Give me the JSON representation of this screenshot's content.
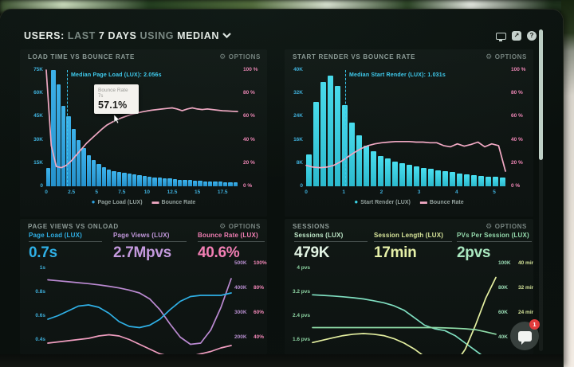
{
  "ui": {
    "options": "OPTIONS"
  },
  "header": {
    "users": "USERS:",
    "last": "LAST",
    "days": "7 DAYS",
    "using": "USING",
    "median": "MEDIAN"
  },
  "icons": {
    "share": "↗",
    "help": "?",
    "gear": "⚙"
  },
  "chat": {
    "badge": "1"
  },
  "panels": {
    "load_time": {
      "title": "LOAD TIME VS BOUNCE RATE"
    },
    "start_render": {
      "title": "START RENDER VS BOUNCE RATE"
    },
    "page_views": {
      "title": "PAGE VIEWS VS ONLOAD",
      "metrics": [
        {
          "label": "Page Load (LUX)",
          "value": "0.7s"
        },
        {
          "label": "Page Views (LUX)",
          "value": "2.7Mpvs"
        },
        {
          "label": "Bounce Rate (LUX)",
          "value": "40.6%"
        }
      ]
    },
    "sessions": {
      "title": "SESSIONS",
      "metrics": [
        {
          "label": "Sessions (LUX)",
          "value": "479K"
        },
        {
          "label": "Session Length (LUX)",
          "value": "17min"
        },
        {
          "label": "PVs Per Session (LUX)",
          "value": "2pvs"
        }
      ]
    }
  },
  "chart_data": [
    {
      "type": "bar",
      "title": "LOAD TIME VS BOUNCE RATE",
      "bars_series": "Page Load (LUX) user count",
      "bar_max": 75000,
      "bars": [
        12,
        75,
        66,
        52,
        45,
        37,
        30,
        24.5,
        20,
        17,
        14.5,
        12.5,
        11,
        10,
        9.2,
        8.6,
        8,
        7.5,
        7,
        6.6,
        6.2,
        5.8,
        5.5,
        5.2,
        4.9,
        4.6,
        4.3,
        4.1,
        3.9,
        3.7,
        3.5,
        3.3,
        3.1,
        3,
        2.9,
        2.8,
        2.7,
        2.6
      ],
      "bars_unit": "K users per 0.5s bin, x = seconds 0-19",
      "line_series": "Bounce Rate %",
      "line": [
        100,
        35,
        17,
        16,
        18,
        22,
        27,
        32,
        37,
        41,
        45,
        49,
        52.5,
        55,
        57.1,
        59,
        60.5,
        62,
        63,
        64,
        64.8,
        65.5,
        66,
        66.5,
        67,
        67.5,
        66.5,
        65,
        66.5,
        67.5,
        66.5,
        66,
        66.5,
        66,
        65.5,
        65,
        64.8,
        64.5,
        64.3
      ],
      "y_left": [
        "75K",
        "60K",
        "45K",
        "30K",
        "15K",
        "0"
      ],
      "y_right": [
        "100 %",
        "80 %",
        "60 %",
        "40 %",
        "20 %",
        "0 %"
      ],
      "x_ticks": [
        "0",
        "2.5",
        "5",
        "7.5",
        "10",
        "12.5",
        "15",
        "17.5"
      ],
      "median": {
        "label": "Median Page Load (LUX): 2.056s",
        "value_s": 2.056
      },
      "tooltip": {
        "series": "Bounce Rate",
        "x": "7s",
        "value": "57.1%"
      },
      "legend": [
        "Page Load (LUX)",
        "Bounce Rate"
      ]
    },
    {
      "type": "bar",
      "title": "START RENDER VS BOUNCE RATE",
      "bars_series": "Start Render (LUX) user count",
      "bar_max": 40000,
      "bars": [
        11,
        29,
        36,
        38,
        34.5,
        28,
        22,
        17.5,
        14,
        12,
        10.5,
        9.5,
        8.6,
        7.9,
        7.3,
        6.8,
        6.3,
        5.9,
        5.5,
        5.1,
        4.8,
        4.5,
        4.2,
        3.9,
        3.6,
        3.4,
        3.2,
        3
      ],
      "bars_unit": "K users per bin, x = seconds 0-5.3",
      "line_series": "Bounce Rate %",
      "line": [
        18,
        16.5,
        16,
        16.5,
        18,
        21,
        25,
        29,
        32.5,
        35,
        36.5,
        37.5,
        38,
        38.5,
        38.5,
        38.5,
        38,
        38,
        37.5,
        37.5,
        35,
        34,
        36.5,
        34.5,
        36,
        38,
        34,
        36.5,
        35,
        13
      ],
      "y_left": [
        "40K",
        "32K",
        "24K",
        "16K",
        "8K",
        "0"
      ],
      "y_right": [
        "100 %",
        "80 %",
        "60 %",
        "40 %",
        "20 %",
        "0 %"
      ],
      "x_ticks": [
        "0",
        "1",
        "2",
        "3",
        "4",
        "5"
      ],
      "median": {
        "label": "Median Start Render (LUX): 1.031s",
        "value_s": 1.031
      },
      "legend": [
        "Start Render (LUX)",
        "Bounce Rate"
      ]
    },
    {
      "type": "line",
      "title": "PAGE VIEWS VS ONLOAD",
      "y_left": [
        "1s",
        "0.8s",
        "0.6s",
        "0.4s"
      ],
      "y_right_k": [
        "500K",
        "400K",
        "300K",
        "200K"
      ],
      "y_right_pct": [
        "100%",
        "80%",
        "60%",
        "40%"
      ],
      "series": [
        {
          "name": "Page Load (LUX)",
          "unit": "s",
          "values": [
            0.6,
            0.63,
            0.67,
            0.71,
            0.72,
            0.7,
            0.65,
            0.58,
            0.54,
            0.53,
            0.55,
            0.6,
            0.68,
            0.75,
            0.79,
            0.8,
            0.8,
            0.8,
            0.82
          ]
        },
        {
          "name": "Page Views (LUX)",
          "unit": "K",
          "values": [
            465,
            461,
            457,
            453,
            449,
            444,
            438,
            431,
            422,
            410,
            385,
            340,
            280,
            225,
            195,
            200,
            255,
            350,
            470
          ]
        },
        {
          "name": "Bounce Rate (LUX)",
          "unit": "%",
          "values": [
            40,
            41,
            42,
            43,
            44,
            46,
            47,
            46,
            43,
            39,
            35,
            31,
            29,
            28.5,
            29,
            31,
            33,
            36,
            38
          ]
        }
      ]
    },
    {
      "type": "line",
      "title": "SESSIONS",
      "y_left": [
        "4 pvs",
        "3.2 pvs",
        "2.4 pvs",
        "1.6 pvs"
      ],
      "y_right_k": [
        "100K",
        "80K",
        "60K",
        "40K"
      ],
      "y_right_min": [
        "40 min",
        "32 min",
        "24 min",
        ""
      ],
      "series": [
        {
          "name": "Sessions (LUX)",
          "unit": "K",
          "values": [
            80.5,
            80,
            79.5,
            78.8,
            78,
            77,
            75.5,
            73.8,
            71.3,
            67.5,
            61.3,
            55,
            52,
            50.5,
            46.3,
            40,
            33.8,
            27.5,
            22.5
          ]
        },
        {
          "name": "Session Length (LUX)",
          "unit": "min",
          "values": [
            16.2,
            17,
            17.8,
            18.5,
            19,
            19.2,
            19,
            18.5,
            17.5,
            16,
            14,
            11.5,
            9,
            7.5,
            9,
            14,
            22,
            31,
            38
          ]
        },
        {
          "name": "PVs Per Session (LUX)",
          "unit": "pvs",
          "values": [
            2.12,
            2.12,
            2.12,
            2.12,
            2.12,
            2.12,
            2.12,
            2.12,
            2.12,
            2.12,
            2.12,
            2.12,
            2.12,
            2.11,
            2.1,
            2.08,
            2.05,
            1.98,
            1.9
          ]
        }
      ]
    }
  ],
  "colors": {
    "bar_blue": "#2ea4e2",
    "bar_cyan": "#3bd4e6",
    "bounce_pink": "#f2a9c4",
    "median_cyan": "#3ac9f2",
    "page_load_cyan": "#2fb0e6",
    "page_views_purple": "#bb8ad2",
    "bounce_rate_pink": "#f27fb4",
    "sessions_teal": "#7fdec0",
    "session_len_yellow": "#e4efa0",
    "pvs_green": "#8fdca8",
    "badge_red": "#e23b3b"
  }
}
